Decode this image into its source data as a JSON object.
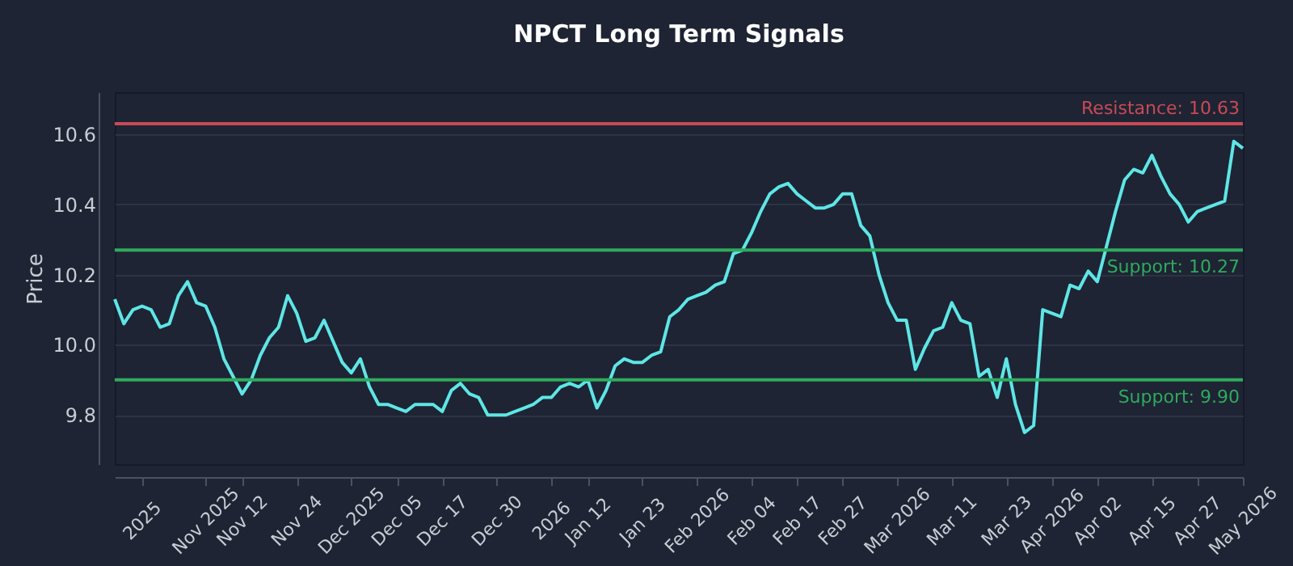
{
  "chart_data": {
    "type": "line",
    "title": "NPCT Long Term Signals",
    "ylabel": "Price",
    "categories": [
      null,
      null,
      null,
      "2025",
      null,
      null,
      null,
      null,
      null,
      null,
      "Nov 2025",
      null,
      null,
      null,
      "Nov 12",
      null,
      null,
      null,
      null,
      null,
      "Nov 24",
      null,
      null,
      null,
      null,
      null,
      "Dec 2025",
      null,
      null,
      null,
      null,
      "Dec 05",
      null,
      null,
      null,
      null,
      "Dec 17",
      null,
      null,
      null,
      null,
      null,
      "Dec 30",
      null,
      null,
      null,
      null,
      null,
      "2026",
      null,
      null,
      null,
      "Jan 12",
      null,
      null,
      null,
      null,
      null,
      "Jan 23",
      null,
      null,
      null,
      null,
      null,
      "Feb 2026",
      null,
      null,
      null,
      null,
      null,
      "Feb 04",
      null,
      null,
      null,
      null,
      "Feb 17",
      null,
      null,
      null,
      null,
      "Feb 27",
      null,
      null,
      null,
      null,
      null,
      "Mar 2026",
      null,
      null,
      null,
      null,
      null,
      "Mar 11",
      null,
      null,
      null,
      null,
      null,
      "Mar 23",
      null,
      null,
      null,
      null,
      "Apr 2026",
      null,
      null,
      null,
      null,
      "Apr 02",
      null,
      null,
      null,
      null,
      null,
      "Apr 15",
      null,
      null,
      null,
      null,
      "Apr 27",
      null,
      null,
      null,
      null,
      "May 2026"
    ],
    "series": [
      {
        "color": "#5ee6e6",
        "values": [
          10.13,
          10.06,
          10.1,
          10.11,
          10.1,
          10.05,
          10.06,
          10.14,
          10.18,
          10.12,
          10.11,
          10.05,
          9.96,
          9.91,
          9.86,
          9.9,
          9.97,
          10.02,
          10.05,
          10.14,
          10.09,
          10.01,
          10.02,
          10.07,
          10.01,
          9.95,
          9.92,
          9.96,
          9.88,
          9.83,
          9.83,
          9.82,
          9.81,
          9.83,
          9.83,
          9.83,
          9.81,
          9.87,
          9.89,
          9.86,
          9.85,
          9.8,
          9.8,
          9.8,
          9.81,
          9.82,
          9.83,
          9.85,
          9.85,
          9.88,
          9.89,
          9.88,
          9.9,
          9.82,
          9.87,
          9.94,
          9.96,
          9.95,
          9.95,
          9.97,
          9.98,
          10.08,
          10.1,
          10.13,
          10.14,
          10.15,
          10.17,
          10.18,
          10.26,
          10.27,
          10.32,
          10.38,
          10.43,
          10.45,
          10.46,
          10.43,
          10.41,
          10.39,
          10.39,
          10.4,
          10.43,
          10.43,
          10.34,
          10.31,
          10.2,
          10.12,
          10.07,
          10.07,
          9.93,
          9.99,
          10.04,
          10.05,
          10.12,
          10.07,
          10.06,
          9.91,
          9.93,
          9.85,
          9.96,
          9.83,
          9.75,
          9.77,
          10.1,
          10.09,
          10.08,
          10.17,
          10.16,
          10.21,
          10.18,
          10.28,
          10.38,
          10.47,
          10.5,
          10.49,
          10.54,
          10.48,
          10.43,
          10.4,
          10.35,
          10.38,
          10.39,
          10.4,
          10.41,
          10.58,
          10.56
        ]
      }
    ],
    "ylim": [
      9.66,
      10.72
    ],
    "yticks": [
      9.8,
      {
        "value": 10.0,
        "label": "10.0"
      },
      10.2,
      10.4,
      10.6
    ],
    "grid": "y",
    "marker": "none",
    "line_style": "solid",
    "ref_lines": [
      {
        "axis": "y",
        "value": 10.63,
        "label": "Resistance: 10.63",
        "color": "#c94a55"
      },
      {
        "axis": "y",
        "value": 10.27,
        "label": "Support: 10.27",
        "color": "#2faa5e"
      },
      {
        "axis": "y",
        "value": 9.9,
        "label": "Support: 9.90",
        "color": "#2faa5e"
      }
    ]
  }
}
